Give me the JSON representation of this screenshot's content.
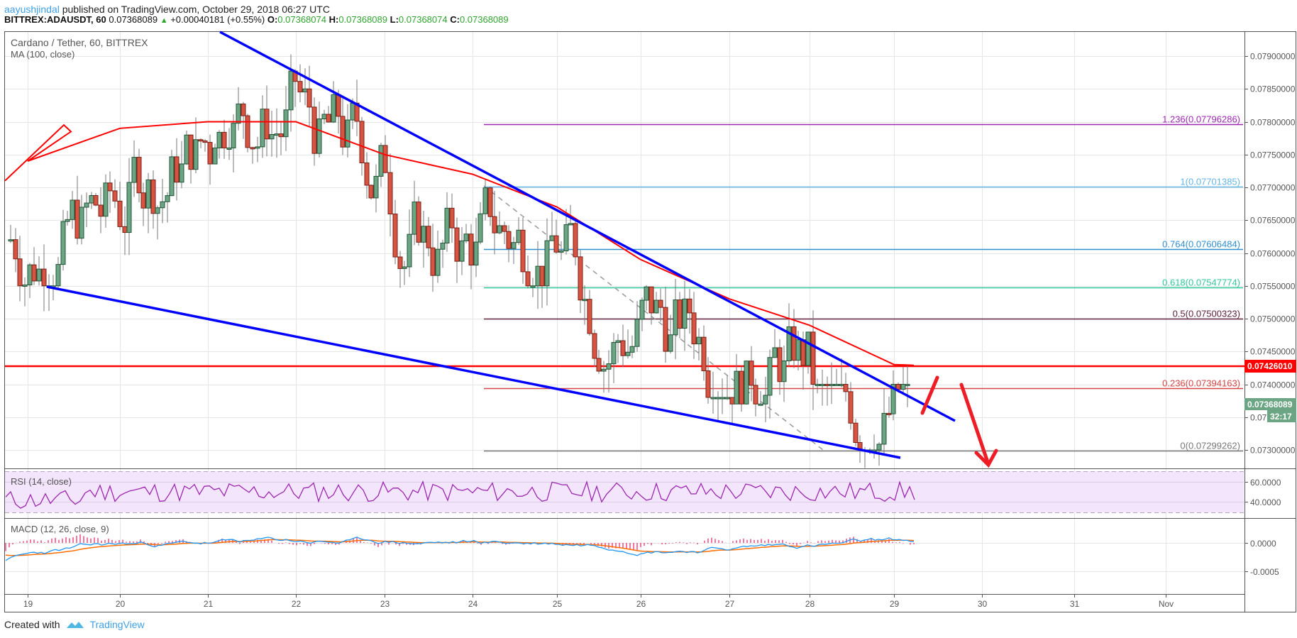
{
  "header": {
    "author": "aayushjindal",
    "published_text": "published on TradingView.com, October 29, 2018 06:27 UTC",
    "symbol": "BITTREX:ADAUSDT, 60",
    "last": "0.07368089",
    "change": "+0.00040181 (+0.55%)",
    "o_label": "O:",
    "o": "0.07368074",
    "h_label": "H:",
    "h": "0.07368089",
    "l_label": "L:",
    "l": "0.07368074",
    "c_label": "C:",
    "c": "0.07368089"
  },
  "main_pane": {
    "title": "Cardano / Tether, 60, BITTREX",
    "ma_label": "MA (100, close)"
  },
  "rsi_pane": {
    "label": "RSI (14, close)"
  },
  "macd_pane": {
    "label": "MACD (12, 26, close, 9)"
  },
  "footer": {
    "created_with": "Created with",
    "brand": "TradingView"
  },
  "colors": {
    "up_candle": "#6ba583",
    "down_candle": "#d75442",
    "ma": "#ff0000",
    "trendline": "#0000ff",
    "arrow": "#ee1c25",
    "rsi_line": "#9c27b0",
    "rsi_band": "#f3e5fc",
    "macd_line": "#2196f3",
    "signal_line": "#ff6d00",
    "histogram": "#e91e63",
    "price_badge": "#6ba583",
    "resistance_badge": "#ff0000"
  },
  "chart_data": {
    "type": "candlestick",
    "title": "Cardano / Tether, 60, BITTREX",
    "symbol": "BITTREX:ADAUSDT",
    "interval": "60",
    "x_ticks": [
      "19",
      "20",
      "21",
      "22",
      "23",
      "24",
      "25",
      "26",
      "27",
      "28",
      "29",
      "30",
      "31",
      "Nov"
    ],
    "y_ticks": [
      "0.07900000",
      "0.07850000",
      "0.07800000",
      "0.07750000",
      "0.07700000",
      "0.07650000",
      "0.07600000",
      "0.07550000",
      "0.07500000",
      "0.07450000",
      "0.07400000",
      "0.07350000",
      "0.07300000"
    ],
    "ylim": [
      0.0727,
      0.0794
    ],
    "current_price": "0.07368089",
    "countdown": "32:17",
    "horizontal_resistance": "0.07426010",
    "fibonacci": [
      {
        "level": "1.236",
        "price": "0.07796286",
        "label": "1.236(0.07796286)",
        "color": "#9c27b0"
      },
      {
        "level": "1",
        "price": "0.07701385",
        "label": "1(0.07701385)",
        "color": "#64b5e6"
      },
      {
        "level": "0.764",
        "price": "0.07606484",
        "label": "0.764(0.07606484)",
        "color": "#2f8fcf"
      },
      {
        "level": "0.618",
        "price": "0.07547774",
        "label": "0.618(0.07547774)",
        "color": "#2ec79b"
      },
      {
        "level": "0.5",
        "price": "0.07500323",
        "label": "0.5(0.07500323)",
        "color": "#5d1f3a"
      },
      {
        "level": "0.236",
        "price": "0.07394163",
        "label": "0.236(0.07394163)",
        "color": "#d64545"
      },
      {
        "level": "0",
        "price": "0.07299262",
        "label": "0(0.07299262)",
        "color": "#787878"
      }
    ],
    "indicators": [
      {
        "name": "MA (100, close)",
        "approx_values_by_day": {
          "19": 0.0774,
          "20": 0.0779,
          "21": 0.078,
          "22": 0.078,
          "23": 0.0775,
          "24": 0.0772,
          "25": 0.0767,
          "26": 0.0759,
          "27": 0.0753,
          "28": 0.0749,
          "29": 0.0743
        }
      },
      {
        "name": "RSI (14, close)",
        "y_ticks": [
          "60.0000",
          "40.0000"
        ],
        "band": [
          30,
          70
        ],
        "last_approx": 52
      },
      {
        "name": "MACD (12, 26, close, 9)",
        "y_ticks": [
          "0.0000",
          "-0.0005"
        ],
        "last_macd_approx": 2e-05,
        "last_signal_approx": -3e-05
      }
    ],
    "approx_daily_ohlc": [
      {
        "day": "19",
        "open": 0.0762,
        "high": 0.0775,
        "low": 0.0755,
        "close": 0.0761
      },
      {
        "day": "20",
        "open": 0.0763,
        "high": 0.0789,
        "low": 0.0761,
        "close": 0.0778
      },
      {
        "day": "21",
        "open": 0.0778,
        "high": 0.079,
        "low": 0.0776,
        "close": 0.0781
      },
      {
        "day": "22",
        "open": 0.0781,
        "high": 0.0785,
        "low": 0.0763,
        "close": 0.0768
      },
      {
        "day": "23",
        "open": 0.0768,
        "high": 0.078,
        "low": 0.074,
        "close": 0.076
      },
      {
        "day": "24",
        "open": 0.076,
        "high": 0.077,
        "low": 0.0755,
        "close": 0.076
      },
      {
        "day": "25",
        "open": 0.076,
        "high": 0.0766,
        "low": 0.0742,
        "close": 0.0748
      },
      {
        "day": "26",
        "open": 0.0748,
        "high": 0.0755,
        "low": 0.0738,
        "close": 0.0745
      },
      {
        "day": "27",
        "open": 0.0745,
        "high": 0.0752,
        "low": 0.0737,
        "close": 0.0737
      },
      {
        "day": "28",
        "open": 0.0737,
        "high": 0.074,
        "low": 0.073,
        "close": 0.0735
      },
      {
        "day": "29",
        "open": 0.0735,
        "high": 0.074,
        "low": 0.0731,
        "close": 0.0737
      }
    ],
    "annotations": [
      "Upper descending trendline (blue) from ~day 21 high toward day 29.5",
      "Lower descending trendline (blue) from day 19.3 to day 29.1",
      "Red zig-zag arrow forecasting move up then down below 0.0730"
    ]
  }
}
